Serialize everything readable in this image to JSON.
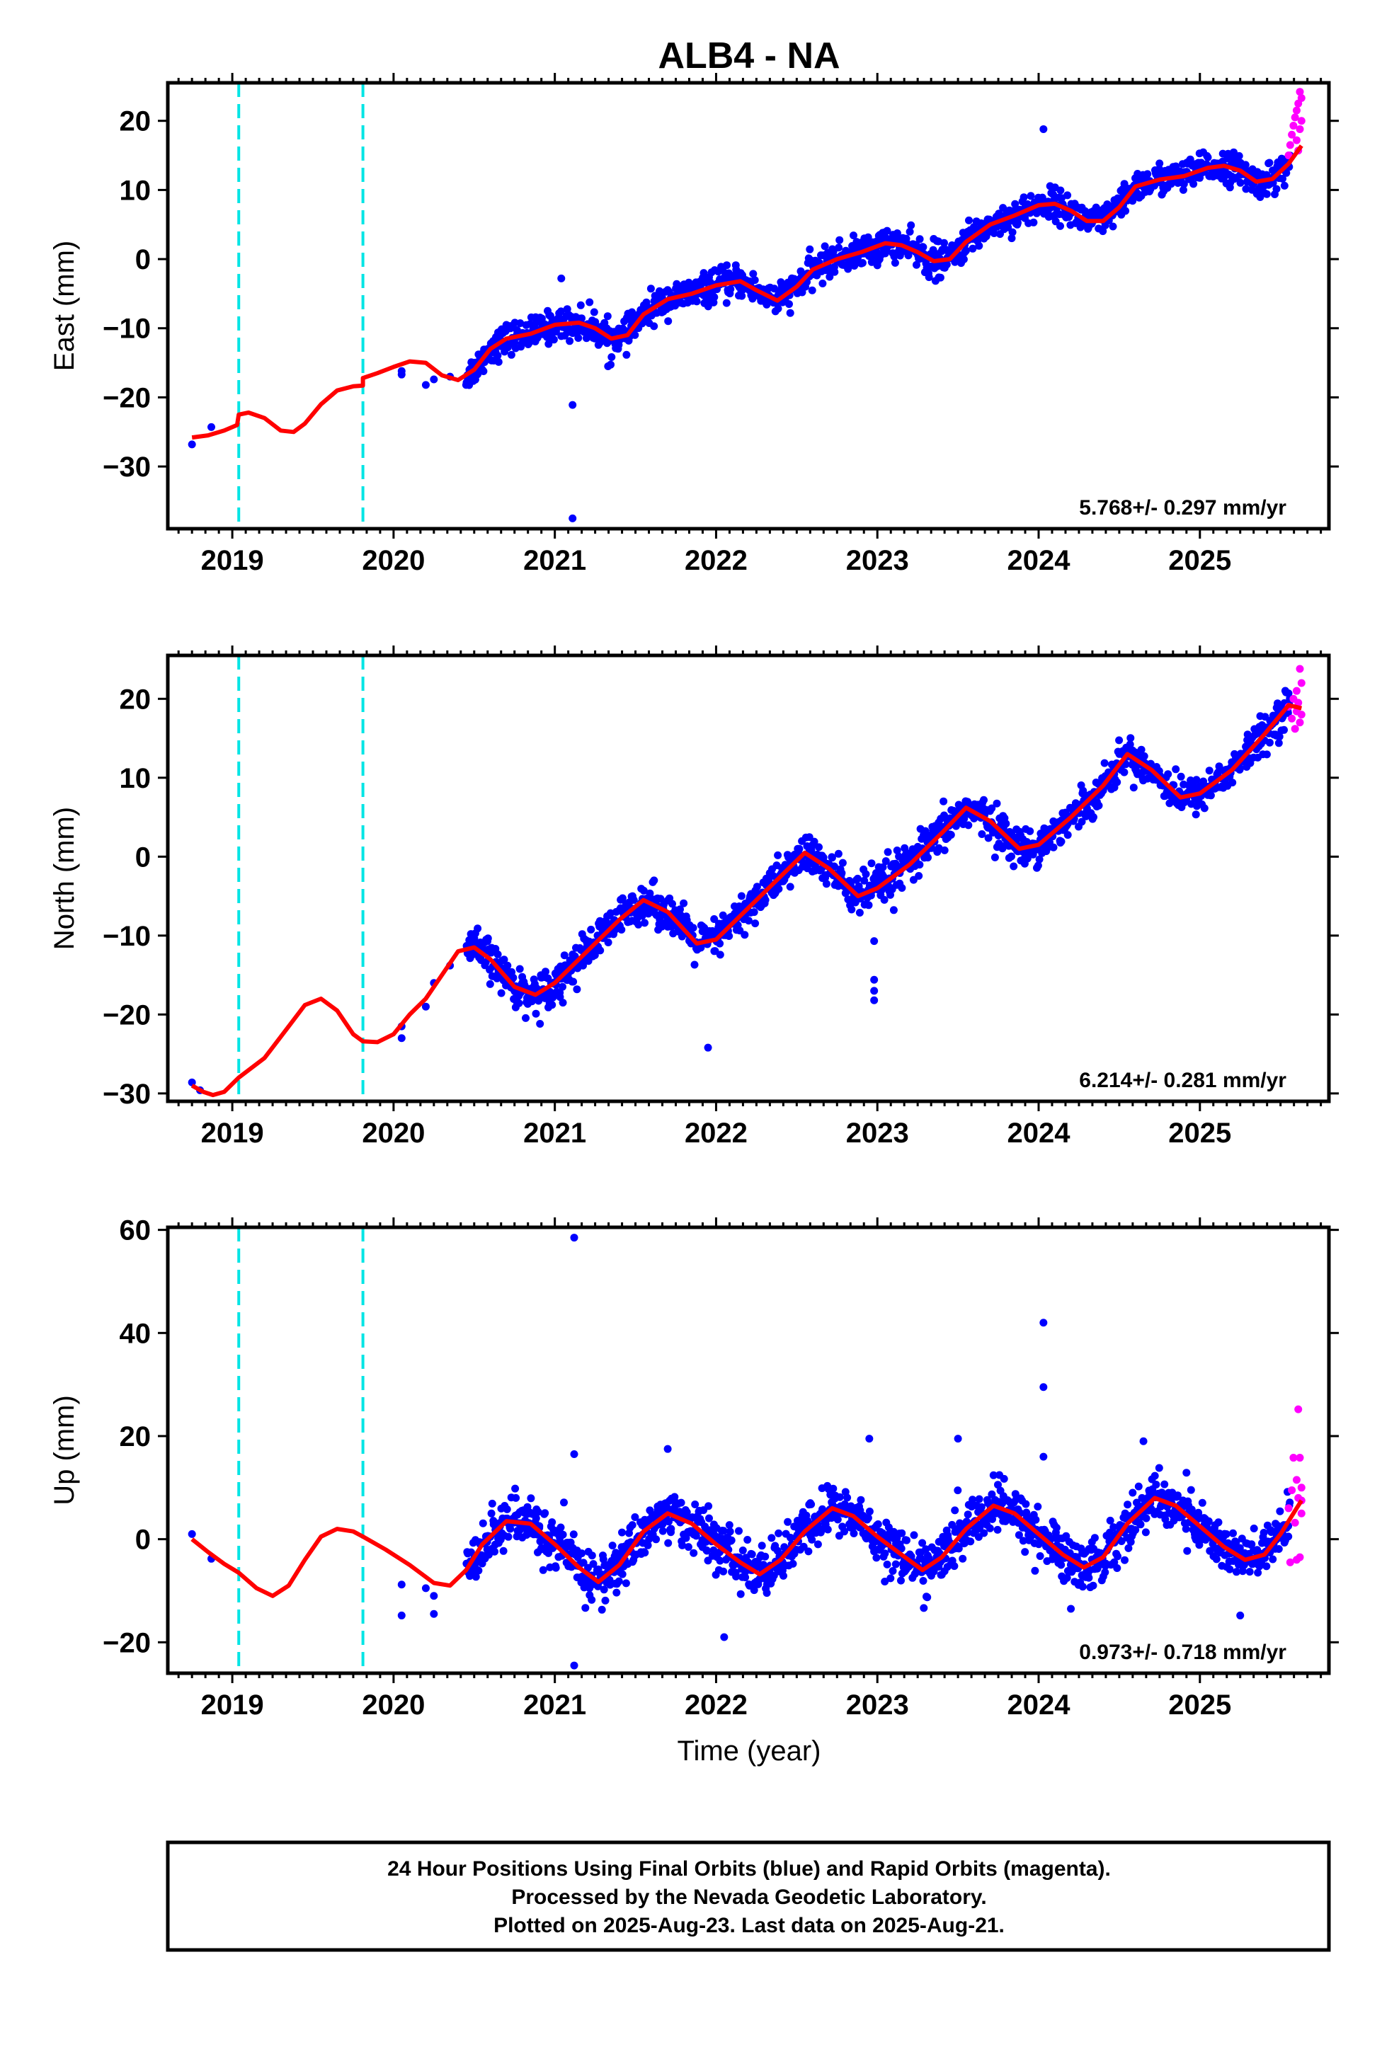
{
  "title": "ALB4 - NA",
  "xlabel": "Time (year)",
  "colors": {
    "final": "#0000ff",
    "rapid": "#ff00ff",
    "model": "#ff0000",
    "break": "#00e5e5",
    "frame": "#000000"
  },
  "breaks": [
    2019.04,
    2019.81
  ],
  "footer": {
    "line1": "24 Hour Positions Using Final Orbits (blue) and Rapid Orbits (magenta).",
    "line2": "Processed by the Nevada Geodetic Laboratory.",
    "line3": "Plotted on 2025-Aug-23. Last data on 2025-Aug-21."
  },
  "chart_data": [
    {
      "type": "scatter",
      "ylabel": "East (mm)",
      "rate_label": "5.768+/- 0.297 mm/yr",
      "xlim": [
        2018.6,
        2025.8
      ],
      "ylim": [
        -39,
        25.5
      ],
      "xticks": [
        2019,
        2020,
        2021,
        2022,
        2023,
        2024,
        2025
      ],
      "yticks": [
        -30,
        -20,
        -10,
        0,
        10,
        20
      ],
      "model": {
        "x": [
          2018.75,
          2018.85,
          2018.95,
          2019.03,
          2019.04,
          2019.1,
          2019.2,
          2019.3,
          2019.38,
          2019.45,
          2019.55,
          2019.65,
          2019.75,
          2019.81,
          2019.81,
          2019.9,
          2020.0,
          2020.1,
          2020.2,
          2020.3,
          2020.4,
          2020.5,
          2020.6,
          2020.7,
          2020.85,
          2021.0,
          2021.15,
          2021.25,
          2021.35,
          2021.45,
          2021.55,
          2021.7,
          2021.85,
          2022.0,
          2022.15,
          2022.25,
          2022.38,
          2022.5,
          2022.6,
          2022.75,
          2022.9,
          2023.05,
          2023.15,
          2023.25,
          2023.35,
          2023.45,
          2023.55,
          2023.7,
          2023.85,
          2024.0,
          2024.1,
          2024.2,
          2024.3,
          2024.4,
          2024.5,
          2024.6,
          2024.75,
          2024.9,
          2025.05,
          2025.15,
          2025.25,
          2025.35,
          2025.45,
          2025.55,
          2025.63
        ],
        "y": [
          -25.8,
          -25.5,
          -24.8,
          -24.0,
          -22.5,
          -22.2,
          -23.0,
          -24.8,
          -25.0,
          -23.8,
          -21.0,
          -19.0,
          -18.4,
          -18.3,
          -17.2,
          -16.5,
          -15.6,
          -14.8,
          -15.0,
          -16.8,
          -17.5,
          -16.0,
          -13.0,
          -11.5,
          -10.8,
          -9.5,
          -9.2,
          -10.0,
          -11.5,
          -11.0,
          -8.0,
          -5.8,
          -5.0,
          -3.8,
          -3.2,
          -4.5,
          -6.0,
          -4.0,
          -1.5,
          0.0,
          1.0,
          2.3,
          2.0,
          1.0,
          -0.3,
          0.0,
          2.5,
          5.0,
          6.3,
          7.8,
          8.0,
          7.0,
          5.5,
          5.5,
          7.5,
          10.5,
          11.5,
          12.0,
          13.2,
          13.5,
          12.8,
          11.2,
          11.6,
          13.8,
          16.4
        ]
      },
      "final_points": [
        [
          2018.75,
          -26.8
        ],
        [
          2018.87,
          -24.3
        ],
        [
          2020.05,
          -16.7
        ],
        [
          2020.05,
          -16.2
        ],
        [
          2020.2,
          -18.2
        ],
        [
          2020.25,
          -17.4
        ],
        [
          2020.35,
          -17.0
        ],
        [
          2020.45,
          -18.2
        ],
        [
          2021.04,
          -2.8
        ],
        [
          2021.11,
          -21.1
        ],
        [
          2021.11,
          -37.5
        ],
        [
          2023.0,
          -0.9
        ],
        [
          2024.03,
          18.8
        ],
        [
          2021.33,
          -15.5
        ]
      ],
      "final_segments": [
        [
          2020.45,
          2021.1,
          2.0
        ],
        [
          2021.1,
          2021.3,
          2.2
        ],
        [
          2021.3,
          2021.6,
          2.0
        ],
        [
          2021.6,
          2021.95,
          2.0
        ],
        [
          2021.95,
          2022.45,
          2.0
        ],
        [
          2022.45,
          2023.25,
          2.0
        ],
        [
          2023.25,
          2023.4,
          2.5
        ],
        [
          2023.4,
          2025.56,
          2.0
        ]
      ],
      "rapid_points": [
        [
          2025.55,
          15.0
        ],
        [
          2025.56,
          16.5
        ],
        [
          2025.57,
          18.0
        ],
        [
          2025.58,
          19.3
        ],
        [
          2025.59,
          20.5
        ],
        [
          2025.6,
          17.2
        ],
        [
          2025.6,
          21.5
        ],
        [
          2025.61,
          15.7
        ],
        [
          2025.61,
          22.5
        ],
        [
          2025.62,
          24.2
        ],
        [
          2025.62,
          18.8
        ],
        [
          2025.63,
          20.0
        ],
        [
          2025.63,
          23.3
        ]
      ]
    },
    {
      "type": "scatter",
      "ylabel": "North (mm)",
      "rate_label": "6.214+/- 0.281 mm/yr",
      "xlim": [
        2018.6,
        2025.8
      ],
      "ylim": [
        -31,
        25.5
      ],
      "xticks": [
        2019,
        2020,
        2021,
        2022,
        2023,
        2024,
        2025
      ],
      "yticks": [
        -30,
        -20,
        -10,
        0,
        10,
        20
      ],
      "model": {
        "x": [
          2018.75,
          2018.82,
          2018.88,
          2018.95,
          2019.04,
          2019.2,
          2019.35,
          2019.45,
          2019.55,
          2019.65,
          2019.75,
          2019.81,
          2019.9,
          2020.0,
          2020.1,
          2020.2,
          2020.3,
          2020.4,
          2020.5,
          2020.6,
          2020.75,
          2020.88,
          2021.0,
          2021.2,
          2021.4,
          2021.55,
          2021.7,
          2021.88,
          2022.0,
          2022.2,
          2022.35,
          2022.55,
          2022.7,
          2022.88,
          2023.0,
          2023.2,
          2023.4,
          2023.55,
          2023.7,
          2023.88,
          2024.0,
          2024.2,
          2024.4,
          2024.55,
          2024.7,
          2024.88,
          2025.0,
          2025.2,
          2025.4,
          2025.55,
          2025.63
        ],
        "y": [
          -29.0,
          -29.8,
          -30.2,
          -29.8,
          -28.0,
          -25.5,
          -21.5,
          -18.8,
          -18.0,
          -19.5,
          -22.5,
          -23.4,
          -23.5,
          -22.5,
          -20.0,
          -18.0,
          -15.0,
          -12.0,
          -11.5,
          -13.0,
          -16.5,
          -17.5,
          -16.0,
          -12.0,
          -8.0,
          -5.5,
          -7.0,
          -11.0,
          -10.5,
          -6.5,
          -3.5,
          0.5,
          -1.5,
          -5.0,
          -4.0,
          -1.0,
          3.0,
          6.2,
          4.5,
          1.0,
          1.5,
          5.0,
          9.0,
          13.0,
          11.0,
          7.5,
          8.0,
          11.0,
          15.5,
          19.2,
          18.8
        ]
      },
      "final_points": [
        [
          2018.75,
          -28.6
        ],
        [
          2018.8,
          -29.6
        ],
        [
          2020.05,
          -21.5
        ],
        [
          2020.05,
          -23.0
        ],
        [
          2020.2,
          -19.0
        ],
        [
          2020.25,
          -16.0
        ],
        [
          2020.35,
          -13.8
        ],
        [
          2021.05,
          -18.5
        ],
        [
          2021.95,
          -24.2
        ],
        [
          2022.98,
          -10.7
        ],
        [
          2022.98,
          -15.6
        ],
        [
          2022.98,
          -17.0
        ],
        [
          2022.98,
          -18.2
        ]
      ],
      "final_segments": [
        [
          2020.45,
          2021.2,
          2.2
        ],
        [
          2021.2,
          2022.0,
          2.2
        ],
        [
          2022.0,
          2022.75,
          2.2
        ],
        [
          2022.75,
          2023.15,
          2.6
        ],
        [
          2023.15,
          2023.9,
          2.2
        ],
        [
          2023.9,
          2024.7,
          2.0
        ],
        [
          2024.7,
          2025.56,
          2.0
        ]
      ],
      "rapid_points": [
        [
          2025.55,
          19.0
        ],
        [
          2025.57,
          17.5
        ],
        [
          2025.58,
          20.0
        ],
        [
          2025.59,
          16.2
        ],
        [
          2025.6,
          18.4
        ],
        [
          2025.6,
          21.0
        ],
        [
          2025.61,
          19.5
        ],
        [
          2025.62,
          23.8
        ],
        [
          2025.62,
          17.0
        ],
        [
          2025.63,
          18.0
        ],
        [
          2025.63,
          22.0
        ]
      ]
    },
    {
      "type": "scatter",
      "ylabel": "Up (mm)",
      "rate_label": "0.973+/- 0.718 mm/yr",
      "xlim": [
        2018.6,
        2025.8
      ],
      "ylim": [
        -26,
        60.5
      ],
      "xticks": [
        2019,
        2020,
        2021,
        2022,
        2023,
        2024,
        2025
      ],
      "yticks": [
        -20,
        0,
        20,
        40,
        60
      ],
      "model": {
        "x": [
          2018.75,
          2018.85,
          2018.95,
          2019.04,
          2019.15,
          2019.25,
          2019.35,
          2019.45,
          2019.55,
          2019.65,
          2019.75,
          2019.81,
          2019.95,
          2020.1,
          2020.25,
          2020.35,
          2020.45,
          2020.55,
          2020.7,
          2020.85,
          2021.0,
          2021.15,
          2021.27,
          2021.4,
          2021.55,
          2021.7,
          2021.85,
          2022.0,
          2022.15,
          2022.27,
          2022.4,
          2022.55,
          2022.72,
          2022.85,
          2023.0,
          2023.15,
          2023.28,
          2023.4,
          2023.55,
          2023.72,
          2023.85,
          2024.0,
          2024.15,
          2024.28,
          2024.4,
          2024.55,
          2024.72,
          2024.85,
          2025.0,
          2025.15,
          2025.28,
          2025.4,
          2025.5,
          2025.6,
          2025.63
        ],
        "y": [
          0.0,
          -2.5,
          -4.8,
          -6.5,
          -9.5,
          -11.0,
          -9.0,
          -4.0,
          0.5,
          2.0,
          1.5,
          0.5,
          -2.0,
          -5.0,
          -8.5,
          -9.0,
          -6.0,
          -1.0,
          3.5,
          3.0,
          -1.0,
          -5.5,
          -8.3,
          -5.0,
          1.5,
          5.0,
          3.0,
          -1.0,
          -4.5,
          -6.8,
          -4.0,
          1.5,
          6.0,
          4.5,
          0.5,
          -3.0,
          -6.0,
          -3.5,
          2.0,
          6.5,
          5.0,
          1.0,
          -3.0,
          -5.5,
          -3.5,
          3.0,
          8.0,
          6.5,
          2.5,
          -1.5,
          -4.0,
          -3.0,
          1.0,
          6.0,
          7.5
        ]
      },
      "final_points": [
        [
          2018.75,
          1.0
        ],
        [
          2018.87,
          -3.8
        ],
        [
          2020.05,
          -8.8
        ],
        [
          2020.05,
          -14.8
        ],
        [
          2020.2,
          -9.5
        ],
        [
          2020.25,
          -11.0
        ],
        [
          2020.25,
          -14.5
        ],
        [
          2021.12,
          58.5
        ],
        [
          2021.12,
          16.5
        ],
        [
          2021.12,
          -24.5
        ],
        [
          2021.7,
          17.5
        ],
        [
          2022.05,
          -19.0
        ],
        [
          2022.95,
          19.5
        ],
        [
          2023.5,
          19.5
        ],
        [
          2024.03,
          42.0
        ],
        [
          2024.03,
          29.5
        ],
        [
          2024.03,
          16.0
        ],
        [
          2024.65,
          19.0
        ],
        [
          2024.2,
          -13.5
        ],
        [
          2025.25,
          -14.8
        ]
      ],
      "final_segments": [
        [
          2020.45,
          2021.0,
          4.5
        ],
        [
          2021.0,
          2021.4,
          5.0
        ],
        [
          2021.4,
          2022.0,
          4.5
        ],
        [
          2022.0,
          2022.55,
          4.5
        ],
        [
          2022.55,
          2023.0,
          4.5
        ],
        [
          2023.0,
          2023.5,
          4.5
        ],
        [
          2023.5,
          2024.0,
          4.5
        ],
        [
          2024.0,
          2024.5,
          4.5
        ],
        [
          2024.5,
          2025.0,
          4.5
        ],
        [
          2025.0,
          2025.56,
          4.5
        ]
      ],
      "rapid_points": [
        [
          2025.55,
          6.0
        ],
        [
          2025.56,
          -4.5
        ],
        [
          2025.57,
          9.5
        ],
        [
          2025.58,
          15.8
        ],
        [
          2025.59,
          3.2
        ],
        [
          2025.6,
          -4.0
        ],
        [
          2025.6,
          11.5
        ],
        [
          2025.61,
          8.0
        ],
        [
          2025.61,
          25.2
        ],
        [
          2025.62,
          15.8
        ],
        [
          2025.62,
          -3.5
        ],
        [
          2025.63,
          7.5
        ],
        [
          2025.63,
          5.0
        ],
        [
          2025.63,
          10.0
        ]
      ]
    }
  ]
}
